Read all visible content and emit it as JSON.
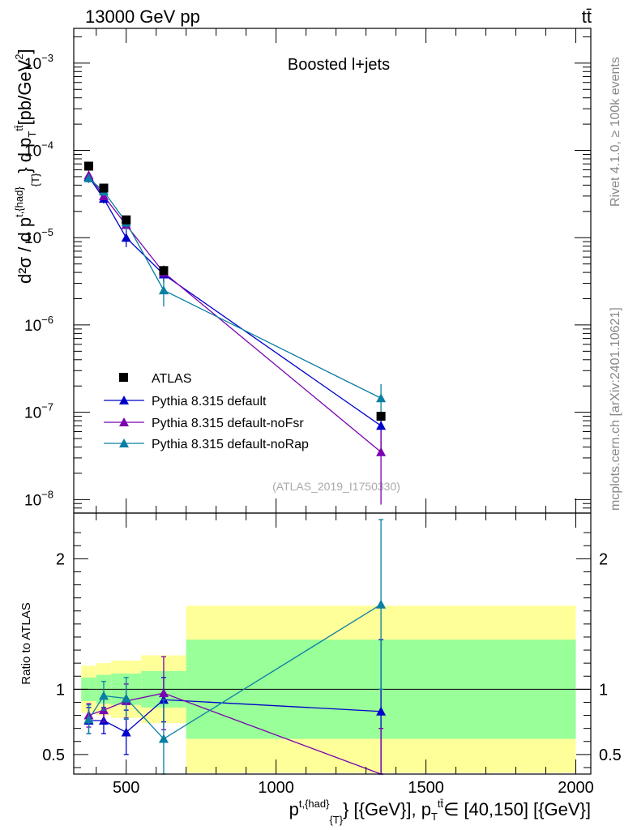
{
  "header": {
    "energy_label": "13000 GeV pp",
    "process_label": "tt̄"
  },
  "side_labels": {
    "rivet": "Rivet 4.1.0, ≥ 100k events",
    "mcplots": "mcplots.cern.ch [arXiv:2401.10621]"
  },
  "colors": {
    "atlas": "#000000",
    "default": "#0000cc",
    "noFsr": "#7a00b0",
    "noRap": "#0a7fa3",
    "band_outer": "#ffff99",
    "band_inner": "#99ff99"
  },
  "chart_data": [
    {
      "type": "line",
      "panel": "main",
      "title": "Boosted l+jets",
      "analysis_label": "(ATLAS_2019_I1750330)",
      "ylabel_main": "d²σ / d p",
      "ylabel_sup": "t,{had}",
      "ylabel_sub": "{T}",
      "ylabel_tail": "} d p",
      "ylabel_tail_sub": "T",
      "ylabel_tail_sup": "tt̄",
      "ylabel_units": "[pb/GeV",
      "ylabel_units_sup": "2",
      "ylabel_units_end": "]",
      "yscale": "log",
      "ylim": [
        7e-09,
        0.0025
      ],
      "xlim": [
        325,
        2050
      ],
      "y_ticks": [
        {
          "value": 1e-08,
          "base": "10",
          "exp": "−8"
        },
        {
          "value": 1e-07,
          "base": "10",
          "exp": "−7"
        },
        {
          "value": 1e-06,
          "base": "10",
          "exp": "−6"
        },
        {
          "value": 1e-05,
          "base": "10",
          "exp": "−5"
        },
        {
          "value": 0.0001,
          "base": "10",
          "exp": "−4"
        },
        {
          "value": 0.001,
          "base": "10",
          "exp": "−3"
        }
      ],
      "legend": [
        "ATLAS",
        "Pythia 8.315 default",
        "Pythia 8.315 default-noFsr",
        "Pythia 8.315 default-noRap"
      ],
      "legend_position": "bottom-left",
      "data": {
        "x": [
          375,
          425,
          500,
          625,
          1350
        ],
        "x_edges": [
          350,
          400,
          450,
          550,
          700,
          2000
        ],
        "rel_err_outer": [
          0.18,
          0.2,
          0.22,
          0.26,
          0.64
        ],
        "rel_err_inner": [
          0.09,
          0.11,
          0.12,
          0.14,
          0.38
        ],
        "atlas": [
          6.6e-05,
          3.7e-05,
          1.6e-05,
          4.2e-06,
          9e-08
        ],
        "series": [
          {
            "name": "Pythia 8.315 default",
            "key": "default",
            "values": [
              5e-05,
              2.8e-05,
              1e-05,
              3.8e-06,
              7e-08
            ],
            "err": [
              0.12,
              0.12,
              0.22,
              0.2,
              0.45
            ]
          },
          {
            "name": "Pythia 8.315 default-noFsr",
            "key": "noFsr",
            "values": [
              5.2e-05,
              3e-05,
              1.4e-05,
              4e-06,
              3.5e-08
            ],
            "err": [
              0.1,
              0.1,
              0.15,
              0.2,
              0.75
            ]
          },
          {
            "name": "Pythia 8.315 default-noRap",
            "key": "noRap",
            "values": [
              4.8e-05,
              3.4e-05,
              1.5e-05,
              2.5e-06,
              1.45e-07
            ],
            "err": [
              0.12,
              0.12,
              0.2,
              0.35,
              0.45
            ]
          }
        ]
      }
    },
    {
      "type": "line",
      "panel": "ratio",
      "ylabel": "Ratio to ATLAS",
      "xlabel_main": "p",
      "xlabel_sup": "t,{had}",
      "xlabel_sub": "{T}",
      "xlabel_rest": "} [{GeV}], p",
      "xlabel_sub2": "T",
      "xlabel_sup2": "tt̄",
      "xlabel_tail": "∈ [40,150] [{GeV}]",
      "ylim": [
        0.35,
        2.35
      ],
      "xlim": [
        325,
        2050
      ],
      "y_ticks": [
        {
          "value": 0.5,
          "label": "0.5"
        },
        {
          "value": 1,
          "label": "1"
        },
        {
          "value": 2,
          "label": "2"
        }
      ],
      "x_ticks": [
        {
          "value": 500,
          "label": "500"
        },
        {
          "value": 1000,
          "label": "1000"
        },
        {
          "value": 1500,
          "label": "1500"
        },
        {
          "value": 2000,
          "label": "2000"
        }
      ],
      "data": {
        "series": [
          {
            "key": "default",
            "values": [
              0.76,
              0.76,
              0.67,
              0.92,
              0.83
            ],
            "err": [
              0.1,
              0.1,
              0.17,
              0.17,
              0.55
            ]
          },
          {
            "key": "noFsr",
            "values": [
              0.8,
              0.84,
              0.91,
              0.97,
              0.3
            ],
            "err": [
              0.09,
              0.09,
              0.13,
              0.28,
              0.4
            ]
          },
          {
            "key": "noRap",
            "values": [
              0.77,
              0.95,
              0.93,
              0.62,
              1.65
            ],
            "err": [
              0.11,
              0.11,
              0.16,
              0.3,
              0.65
            ]
          }
        ]
      }
    }
  ]
}
